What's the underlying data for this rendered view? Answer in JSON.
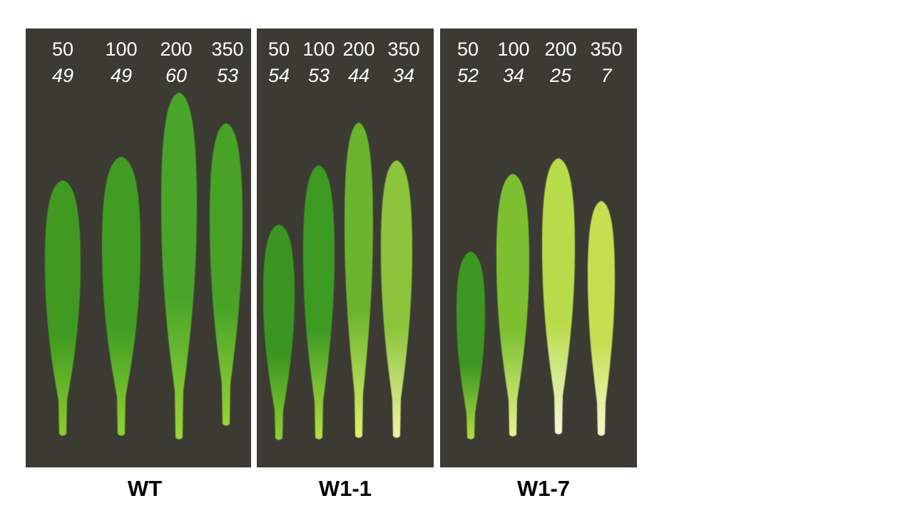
{
  "panels": [
    {
      "label": "WT",
      "columns": [
        {
          "top": 50,
          "bottom": 49
        },
        {
          "top": 100,
          "bottom": 49
        },
        {
          "top": 200,
          "bottom": 60
        },
        {
          "top": 350,
          "bottom": 53
        }
      ]
    },
    {
      "label": "W1-1",
      "columns": [
        {
          "top": 50,
          "bottom": 54
        },
        {
          "top": 100,
          "bottom": 53
        },
        {
          "top": 200,
          "bottom": 44
        },
        {
          "top": 350,
          "bottom": 34
        }
      ]
    },
    {
      "label": "W1-7",
      "columns": [
        {
          "top": 50,
          "bottom": 52
        },
        {
          "top": 100,
          "bottom": 34
        },
        {
          "top": 200,
          "bottom": 25
        },
        {
          "top": 350,
          "bottom": 7
        }
      ]
    }
  ]
}
